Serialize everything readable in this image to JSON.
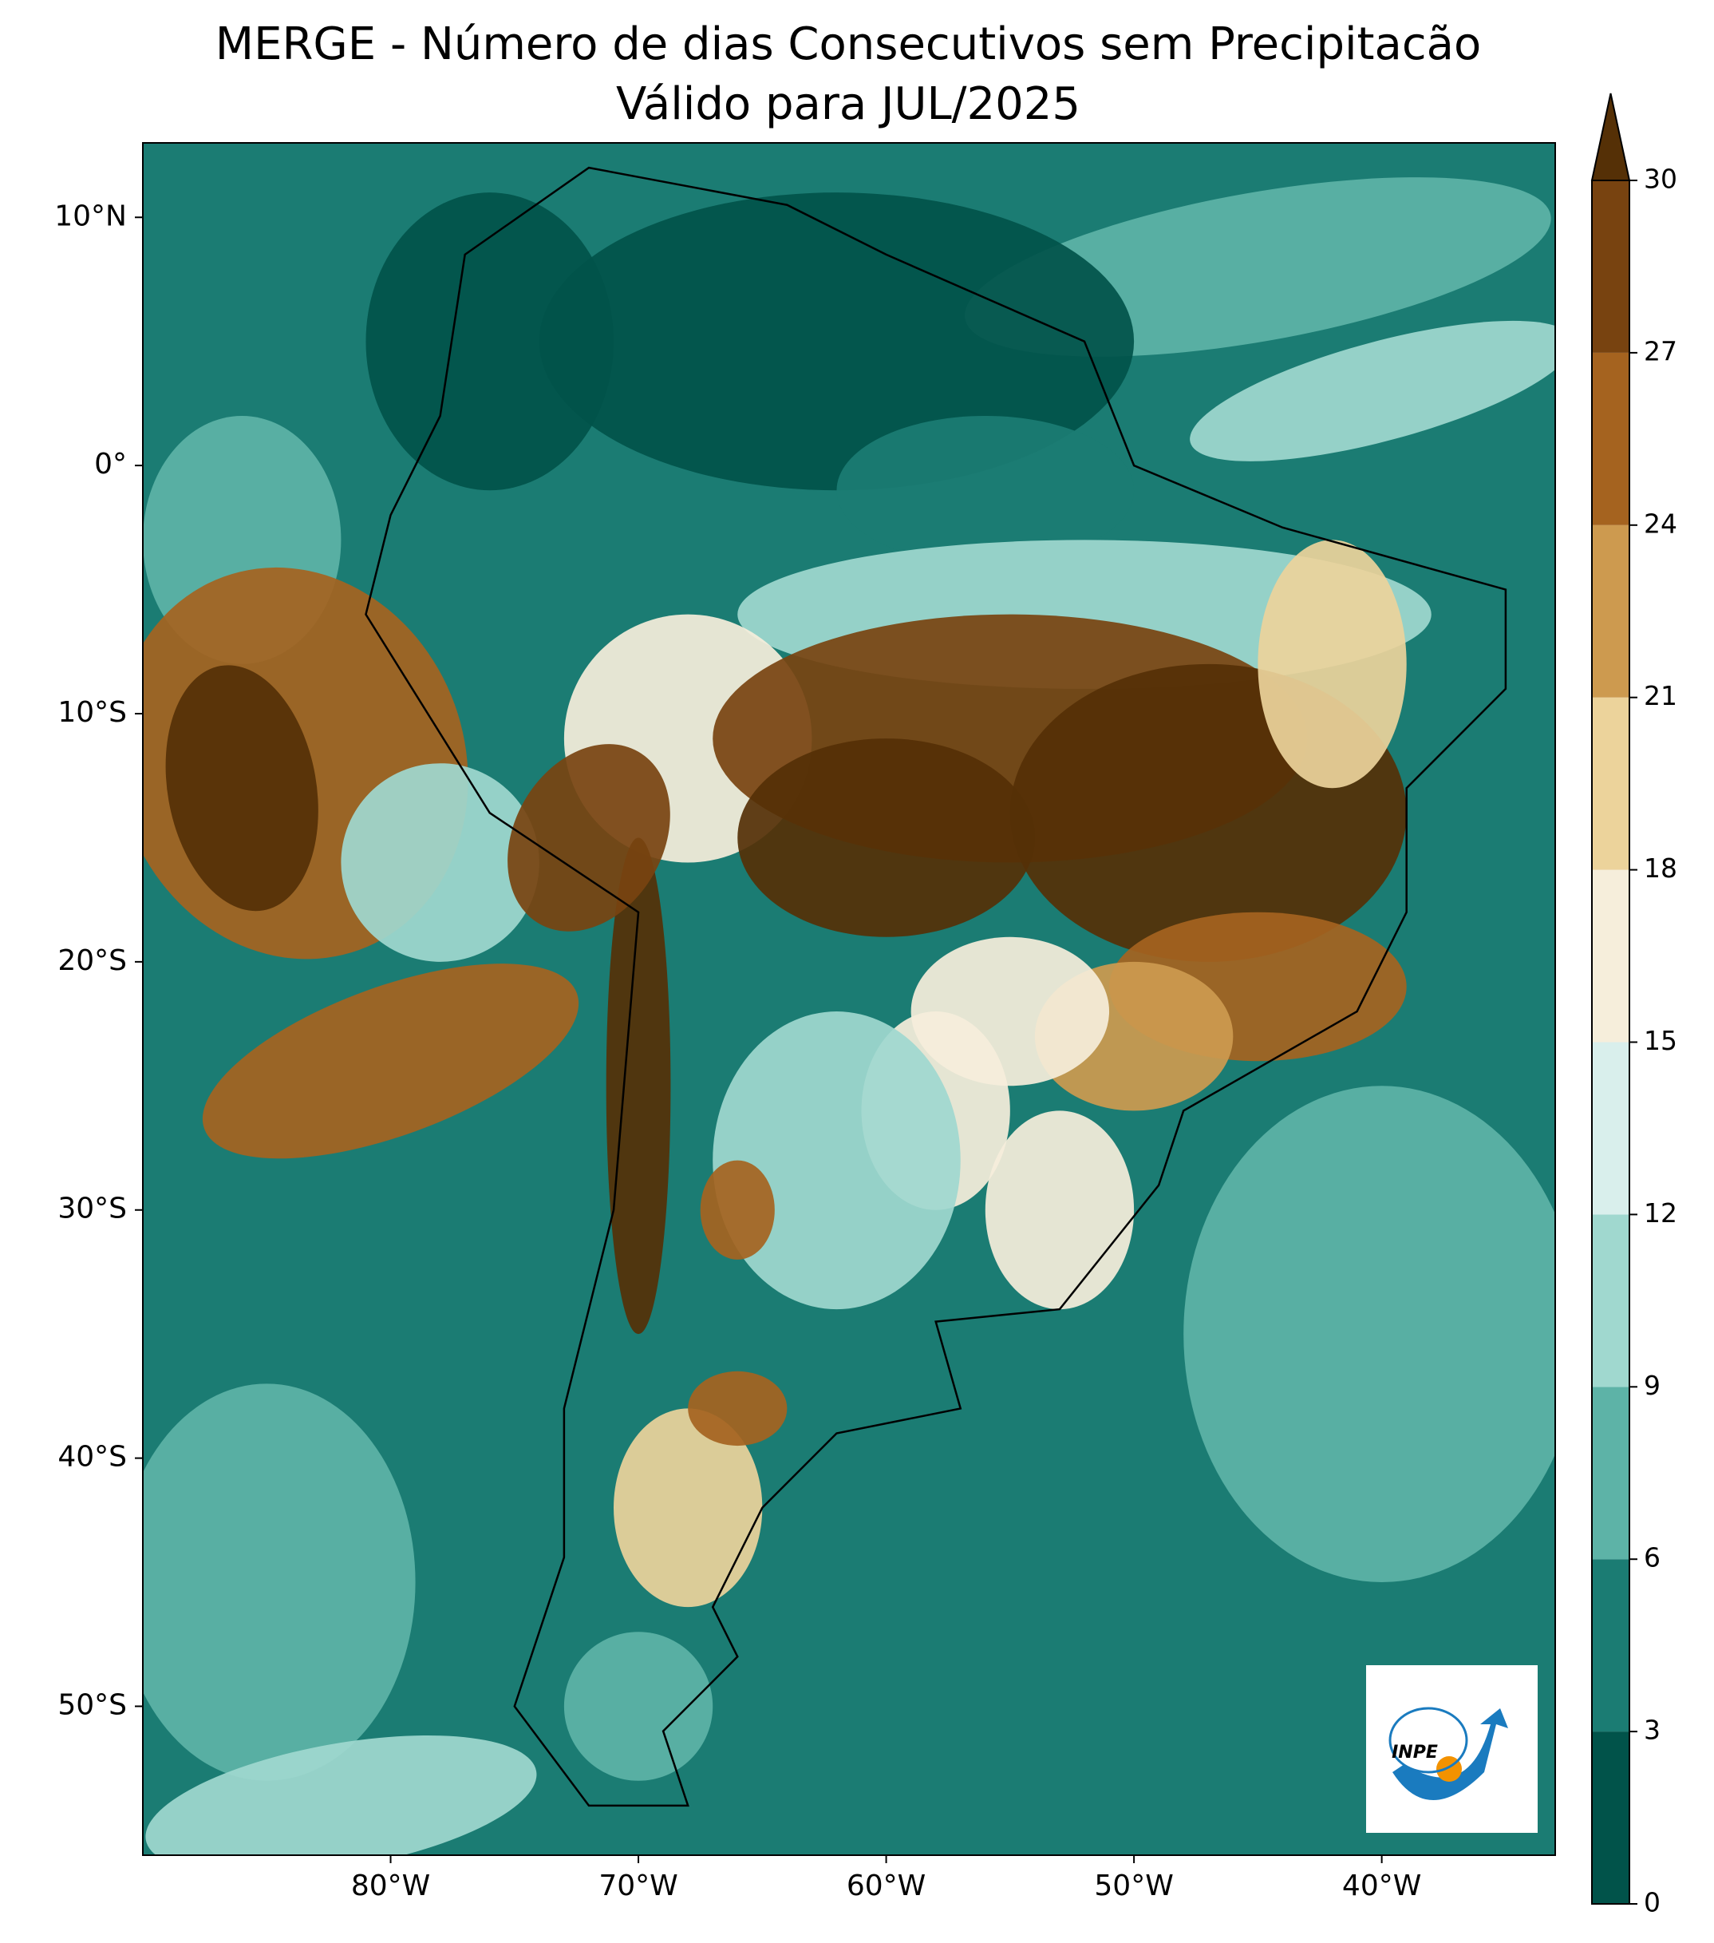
{
  "chart_data": {
    "type": "map",
    "title": "MERGE - Número de dias Consecutivos sem Precipitacão",
    "subtitle": "Válido para JUL/2025",
    "xlim": [
      -90,
      -33
    ],
    "ylim": [
      -56,
      13
    ],
    "xticks": [
      {
        "value": -80,
        "label": "80°W"
      },
      {
        "value": -70,
        "label": "70°W"
      },
      {
        "value": -60,
        "label": "60°W"
      },
      {
        "value": -50,
        "label": "50°W"
      },
      {
        "value": -40,
        "label": "40°W"
      }
    ],
    "yticks": [
      {
        "value": 10,
        "label": "10°N"
      },
      {
        "value": 0,
        "label": "0°"
      },
      {
        "value": -10,
        "label": "10°S"
      },
      {
        "value": -20,
        "label": "20°S"
      },
      {
        "value": -30,
        "label": "30°S"
      },
      {
        "value": -40,
        "label": "40°S"
      },
      {
        "value": -50,
        "label": "50°S"
      }
    ],
    "colorbar": {
      "ticks": [
        0,
        3,
        6,
        9,
        12,
        15,
        18,
        21,
        24,
        27,
        30
      ],
      "colors": [
        "#01534a",
        "#1b7c73",
        "#5db3a7",
        "#a0d8cf",
        "#d9efec",
        "#f6eedb",
        "#ecd39b",
        "#cd9a4f",
        "#a5631f",
        "#784310"
      ],
      "extend_color": "#553006"
    },
    "logo": "INPE"
  }
}
